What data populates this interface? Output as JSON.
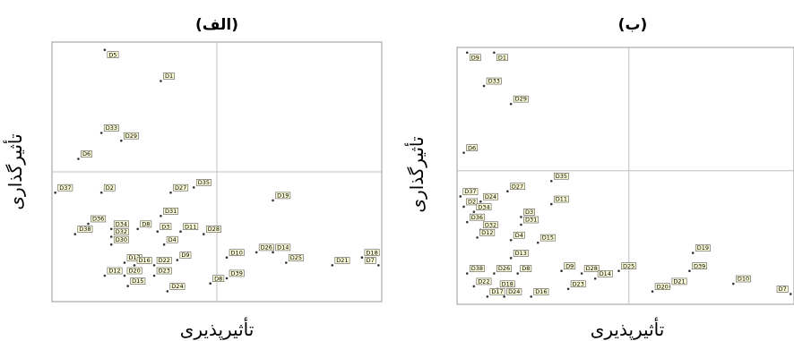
{
  "chart_data": [
    {
      "type": "scatter",
      "title": "(الف)",
      "xlabel": "تأثیرپذیری",
      "ylabel": "تأثیرگذاری",
      "xlim": [
        0,
        100
      ],
      "ylim": [
        0,
        100
      ],
      "divider": {
        "x": 50,
        "y": 50
      },
      "points": [
        {
          "label": "D5",
          "x": 16,
          "y": 97
        },
        {
          "label": "D1",
          "x": 33,
          "y": 85
        },
        {
          "label": "D33",
          "x": 15,
          "y": 65
        },
        {
          "label": "D29",
          "x": 21,
          "y": 62
        },
        {
          "label": "D6",
          "x": 8,
          "y": 55
        },
        {
          "label": "D37",
          "x": 1,
          "y": 42
        },
        {
          "label": "D2",
          "x": 15,
          "y": 42
        },
        {
          "label": "D27",
          "x": 36,
          "y": 42
        },
        {
          "label": "D35",
          "x": 43,
          "y": 44
        },
        {
          "label": "D19",
          "x": 67,
          "y": 39
        },
        {
          "label": "D31",
          "x": 33,
          "y": 33
        },
        {
          "label": "D36",
          "x": 11,
          "y": 30
        },
        {
          "label": "D8",
          "x": 26,
          "y": 28
        },
        {
          "label": "D3",
          "x": 32,
          "y": 27
        },
        {
          "label": "D11",
          "x": 39,
          "y": 27
        },
        {
          "label": "D34",
          "x": 18,
          "y": 28
        },
        {
          "label": "D32",
          "x": 18,
          "y": 25
        },
        {
          "label": "D38",
          "x": 7,
          "y": 26
        },
        {
          "label": "D28",
          "x": 46,
          "y": 26
        },
        {
          "label": "D30",
          "x": 18,
          "y": 22
        },
        {
          "label": "D4",
          "x": 34,
          "y": 22
        },
        {
          "label": "D26",
          "x": 62,
          "y": 19
        },
        {
          "label": "D14",
          "x": 67,
          "y": 19
        },
        {
          "label": "D10",
          "x": 53,
          "y": 17
        },
        {
          "label": "D18",
          "x": 94,
          "y": 17
        },
        {
          "label": "D17",
          "x": 22,
          "y": 15
        },
        {
          "label": "D16",
          "x": 25,
          "y": 14
        },
        {
          "label": "D22",
          "x": 31,
          "y": 14
        },
        {
          "label": "D9",
          "x": 38,
          "y": 16
        },
        {
          "label": "D25",
          "x": 71,
          "y": 15
        },
        {
          "label": "D21",
          "x": 85,
          "y": 14
        },
        {
          "label": "D7",
          "x": 99,
          "y": 14
        },
        {
          "label": "D12",
          "x": 16,
          "y": 10
        },
        {
          "label": "D20",
          "x": 22,
          "y": 10
        },
        {
          "label": "D23",
          "x": 31,
          "y": 10
        },
        {
          "label": "D39",
          "x": 53,
          "y": 9
        },
        {
          "label": "D15",
          "x": 23,
          "y": 6
        },
        {
          "label": "D24",
          "x": 35,
          "y": 4
        },
        {
          "label": "D8",
          "x": 48,
          "y": 7
        }
      ]
    },
    {
      "type": "scatter",
      "title": "(ب)",
      "xlabel": "تأثیرپذیری",
      "ylabel": "تأثیرگذاری",
      "xlim": [
        0,
        100
      ],
      "ylim": [
        0,
        100
      ],
      "divider": {
        "x": 51,
        "y": 52
      },
      "points": [
        {
          "label": "D9",
          "x": 3,
          "y": 98
        },
        {
          "label": "D1",
          "x": 11,
          "y": 98
        },
        {
          "label": "D33",
          "x": 8,
          "y": 85
        },
        {
          "label": "D29",
          "x": 16,
          "y": 78
        },
        {
          "label": "D6",
          "x": 2,
          "y": 59
        },
        {
          "label": "D35",
          "x": 28,
          "y": 48
        },
        {
          "label": "D27",
          "x": 15,
          "y": 44
        },
        {
          "label": "D37",
          "x": 1,
          "y": 42
        },
        {
          "label": "D24",
          "x": 7,
          "y": 40
        },
        {
          "label": "D2",
          "x": 2,
          "y": 38
        },
        {
          "label": "D11",
          "x": 28,
          "y": 39
        },
        {
          "label": "D34",
          "x": 5,
          "y": 36
        },
        {
          "label": "D3",
          "x": 19,
          "y": 34
        },
        {
          "label": "D31",
          "x": 19,
          "y": 31
        },
        {
          "label": "D36",
          "x": 3,
          "y": 32
        },
        {
          "label": "D32",
          "x": 7,
          "y": 29
        },
        {
          "label": "D12",
          "x": 6,
          "y": 26
        },
        {
          "label": "D4",
          "x": 16,
          "y": 25
        },
        {
          "label": "D15",
          "x": 24,
          "y": 24
        },
        {
          "label": "D13",
          "x": 16,
          "y": 18
        },
        {
          "label": "D19",
          "x": 70,
          "y": 20
        },
        {
          "label": "D38",
          "x": 3,
          "y": 12
        },
        {
          "label": "D26",
          "x": 11,
          "y": 12
        },
        {
          "label": "D8",
          "x": 18,
          "y": 12
        },
        {
          "label": "D9",
          "x": 31,
          "y": 13
        },
        {
          "label": "D28",
          "x": 37,
          "y": 12
        },
        {
          "label": "D25",
          "x": 48,
          "y": 13
        },
        {
          "label": "D39",
          "x": 69,
          "y": 13
        },
        {
          "label": "D14",
          "x": 41,
          "y": 10
        },
        {
          "label": "D10",
          "x": 82,
          "y": 8
        },
        {
          "label": "D22",
          "x": 5,
          "y": 7
        },
        {
          "label": "D18",
          "x": 12,
          "y": 6
        },
        {
          "label": "D23",
          "x": 33,
          "y": 6
        },
        {
          "label": "D21",
          "x": 63,
          "y": 7
        },
        {
          "label": "D20",
          "x": 58,
          "y": 5
        },
        {
          "label": "D7",
          "x": 99,
          "y": 4
        },
        {
          "label": "D17",
          "x": 9,
          "y": 3
        },
        {
          "label": "D24",
          "x": 14,
          "y": 3
        },
        {
          "label": "D16",
          "x": 22,
          "y": 3
        }
      ]
    }
  ]
}
